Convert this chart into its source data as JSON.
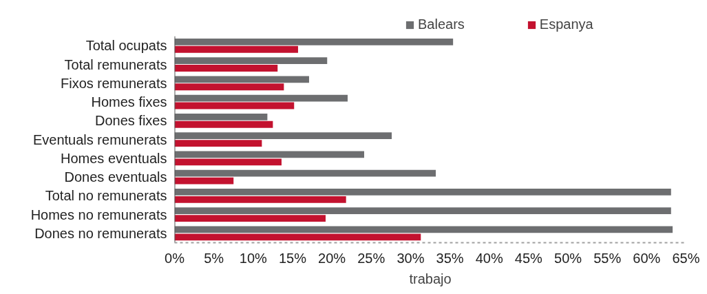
{
  "chart_data": {
    "type": "bar",
    "orientation": "horizontal",
    "xlabel": "trabajo",
    "categories": [
      "Total ocupats",
      "Total remunerats",
      "Fixos remunerats",
      "Homes fixes",
      "Dones fixes",
      "Eventuals remunerats",
      "Homes eventuals",
      "Dones eventuals",
      "Total no remunerats",
      "Homes no remunerats",
      "Dones no remunerats"
    ],
    "series": [
      {
        "name": "Balears",
        "color": "#6d6e70",
        "values": [
          35.4,
          19.4,
          17.1,
          22.0,
          11.8,
          27.6,
          24.1,
          33.2,
          63.1,
          63.1,
          63.3
        ]
      },
      {
        "name": "Espanya",
        "color": "#c3122f",
        "values": [
          15.7,
          13.1,
          13.9,
          15.2,
          12.5,
          11.1,
          13.6,
          7.5,
          21.8,
          19.2,
          31.3
        ]
      }
    ],
    "xlim": [
      0,
      65
    ],
    "xticks": [
      {
        "value": 0,
        "label": "0%"
      },
      {
        "value": 5,
        "label": "5%"
      },
      {
        "value": 10,
        "label": "10%"
      },
      {
        "value": 15,
        "label": "15%"
      },
      {
        "value": 20,
        "label": "20%"
      },
      {
        "value": 25,
        "label": "25%"
      },
      {
        "value": 30,
        "label": "30%"
      },
      {
        "value": 35,
        "label": "35%"
      },
      {
        "value": 40,
        "label": "40%"
      },
      {
        "value": 45,
        "label": "45%"
      },
      {
        "value": 50,
        "label": "50%"
      },
      {
        "value": 55,
        "label": "55%"
      },
      {
        "value": 60,
        "label": "60%"
      },
      {
        "value": 65,
        "label": "65%"
      }
    ],
    "grid": false,
    "legend": "top right"
  }
}
